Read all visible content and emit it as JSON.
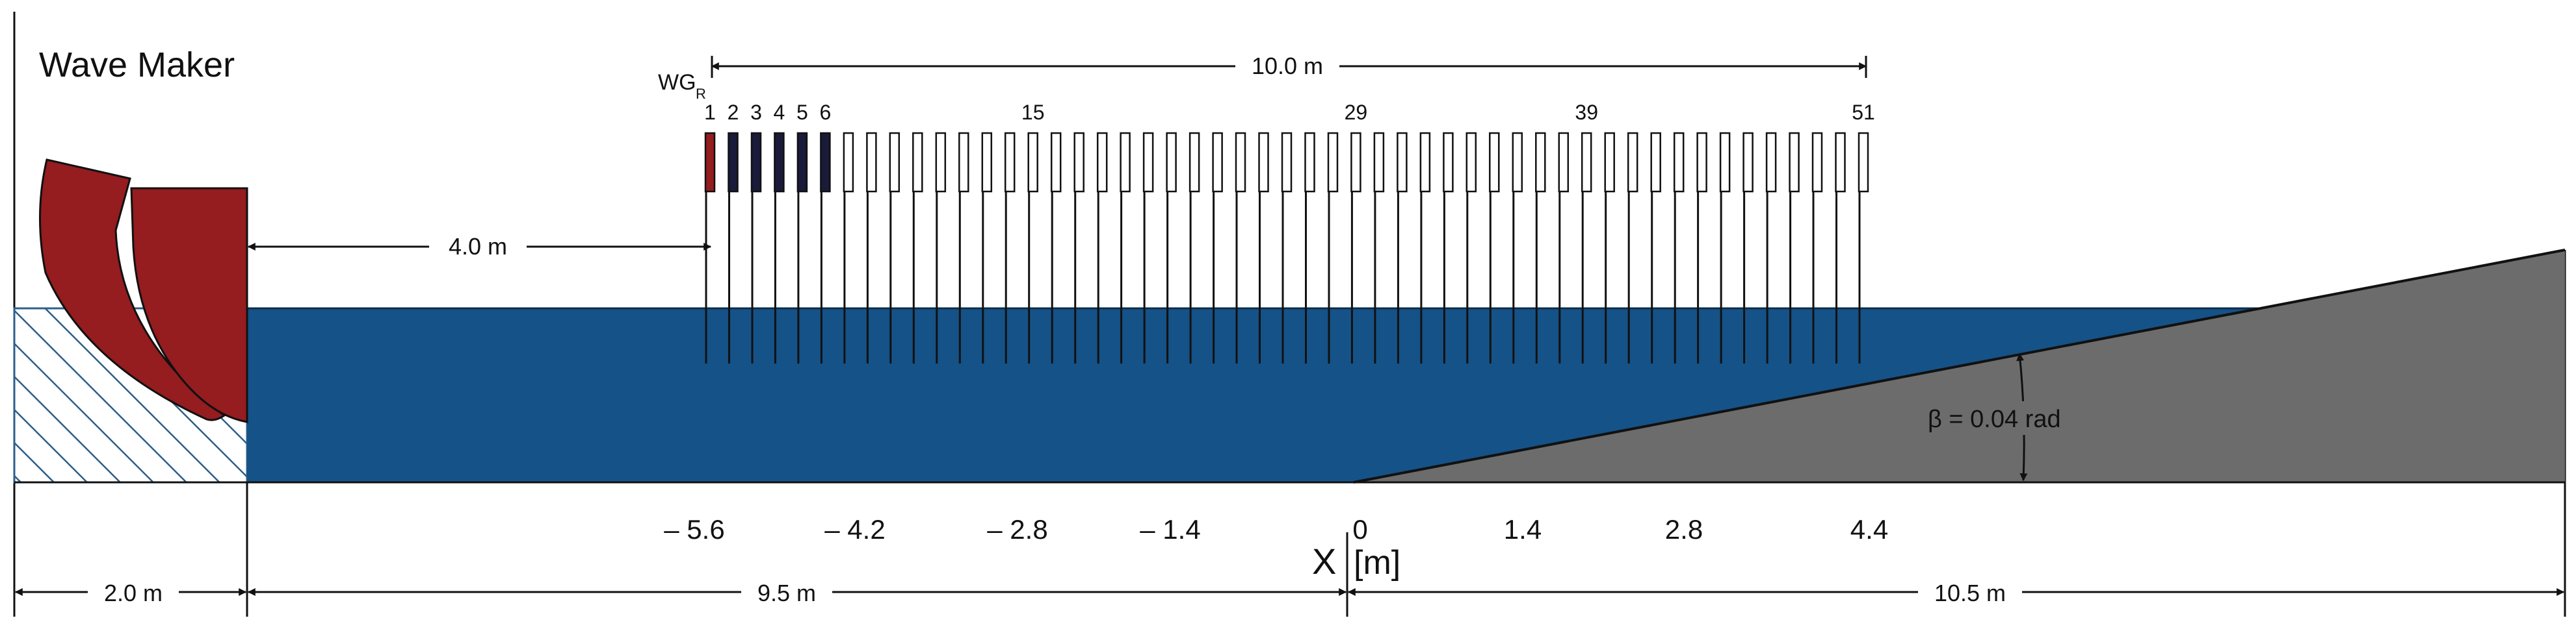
{
  "title": "Wave Maker",
  "gauge_tag": "WG",
  "gauge_tag_sub": "R",
  "gauge_labels": [
    "1",
    "2",
    "3",
    "4",
    "5",
    "6",
    "15",
    "29",
    "39",
    "51"
  ],
  "gauge_label_indices": [
    1,
    2,
    3,
    4,
    5,
    6,
    15,
    29,
    39,
    51
  ],
  "gauge_count": 51,
  "dims": {
    "gauge_span": "10.0 m",
    "maker_to_gauge": "4.0 m",
    "maker_width": "2.0 m",
    "flat_length": "9.5 m",
    "slope_length": "10.5 m"
  },
  "slope_label": "β = 0.04 rad",
  "axis": {
    "label": "X",
    "unit": "[m]",
    "ticks": [
      "– 5.6",
      "– 4.2",
      "– 2.8",
      "– 1.4",
      "0",
      "1.4",
      "2.8",
      "4.4"
    ]
  },
  "colors": {
    "water": "#155287",
    "slope": "#6c6c6c",
    "paddle": "#951c1f",
    "gauge_dark": "#1a1a3a",
    "hatch": "#2d5f8a"
  }
}
